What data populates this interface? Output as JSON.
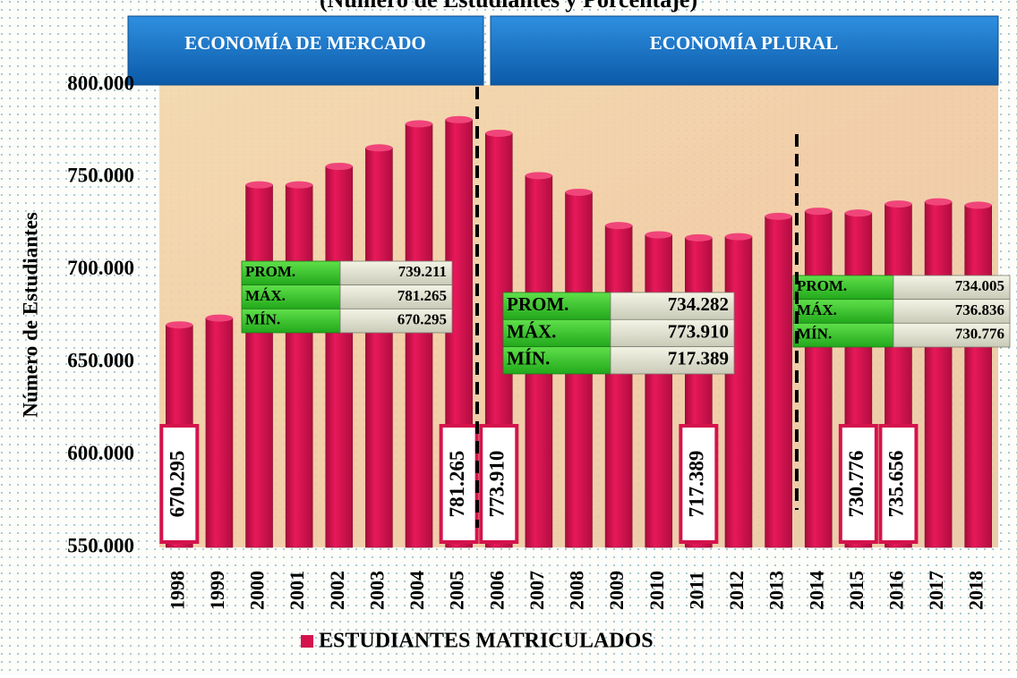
{
  "chart_data": {
    "type": "bar",
    "title": "(Número de Estudiantes y Porcentaje)",
    "y_label": "Número de Estudiantes",
    "categories": [
      "1998",
      "1999",
      "2000",
      "2001",
      "2002",
      "2003",
      "2004",
      "2005",
      "2006",
      "2007",
      "2008",
      "2009",
      "2010",
      "2011",
      "2012",
      "2013",
      "2014",
      "2015",
      "2016",
      "2017",
      "2018"
    ],
    "series": [
      {
        "name": "ESTUDIANTES MATRICULADOS",
        "color": "#d4134c",
        "values": [
          670295,
          674000,
          746000,
          746000,
          756000,
          766000,
          779000,
          781265,
          773910,
          751000,
          742000,
          724000,
          719000,
          717389,
          718000,
          729000,
          731757,
          730776,
          735656,
          736836,
          735000
        ],
        "value_labels": [
          "670.295",
          null,
          null,
          null,
          null,
          null,
          null,
          "781.265",
          "773.910",
          null,
          null,
          null,
          null,
          "717.389",
          null,
          null,
          null,
          "730.776",
          "735.656",
          null,
          null
        ]
      }
    ],
    "ylim": [
      550000,
      800000
    ],
    "yticks": [
      {
        "value": 550000,
        "label": "550.000"
      },
      {
        "value": 600000,
        "label": "600.000"
      },
      {
        "value": 650000,
        "label": "650.000"
      },
      {
        "value": 700000,
        "label": "700.000"
      },
      {
        "value": 750000,
        "label": "750.000"
      },
      {
        "value": 800000,
        "label": "800.000"
      }
    ],
    "grid": false,
    "periods": [
      "ECONOMÍA DE MERCADO",
      "ECONOMÍA PLURAL"
    ],
    "stat_boxes": [
      {
        "rows": [
          {
            "label": "PROM.",
            "value": "739.211"
          },
          {
            "label": "MÁX.",
            "value": "781.265"
          },
          {
            "label": "MÍN.",
            "value": "670.295"
          }
        ]
      },
      {
        "rows": [
          {
            "label": "PROM.",
            "value": "734.282"
          },
          {
            "label": "MÁX.",
            "value": "773.910"
          },
          {
            "label": "MÍN.",
            "value": "717.389"
          }
        ]
      },
      {
        "rows": [
          {
            "label": "PROM.",
            "value": "734.005"
          },
          {
            "label": "MÁX.",
            "value": "736.836"
          },
          {
            "label": "MÍN.",
            "value": "730.776"
          }
        ]
      }
    ]
  }
}
